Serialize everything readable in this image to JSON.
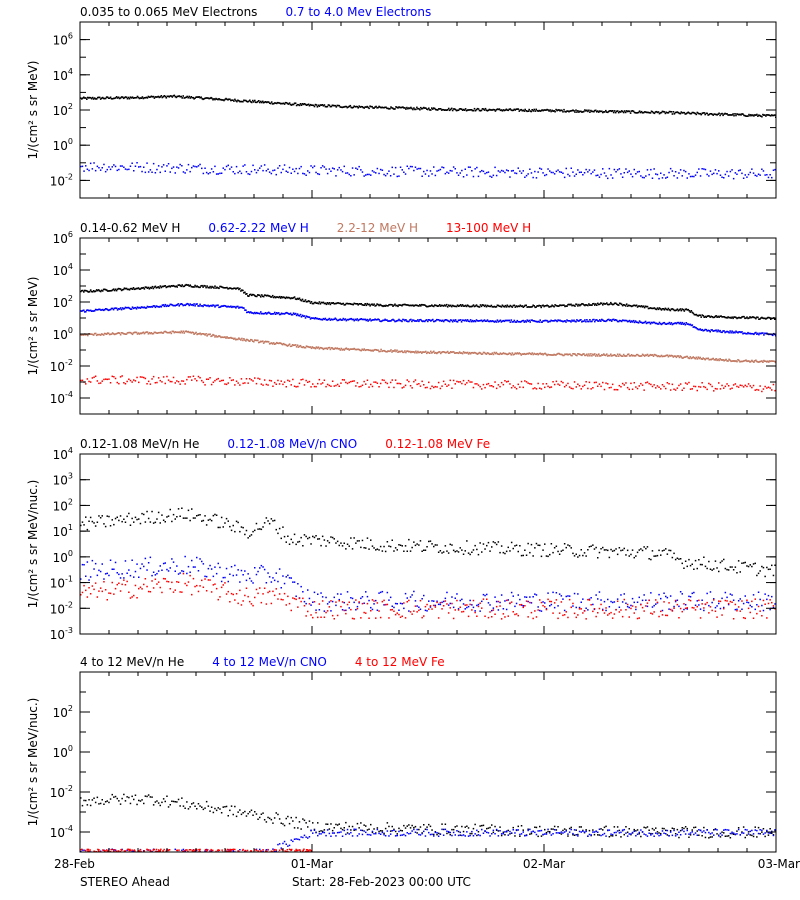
{
  "footer": {
    "spacecraft": "STEREO Ahead",
    "start": "Start: 28-Feb-2023 00:00 UTC"
  },
  "time_axis": {
    "ticks": [
      {
        "t": 0,
        "label": "28-Feb"
      },
      {
        "t": 1,
        "label": "01-Mar"
      },
      {
        "t": 2,
        "label": "02-Mar"
      },
      {
        "t": 3,
        "label": "03-Mar"
      }
    ],
    "range": [
      0,
      3
    ]
  },
  "chart_data": [
    {
      "type": "scatter",
      "ylabel": "1/(cm² s sr MeV)",
      "yscale": "log",
      "ylim": [
        -3,
        7
      ],
      "y_tick_labels": [
        {
          "exp": -2,
          "label": "10",
          "sup": "-2"
        },
        {
          "exp": 0,
          "label": "10",
          "sup": "0"
        },
        {
          "exp": 2,
          "label": "10",
          "sup": "2"
        },
        {
          "exp": 4,
          "label": "10",
          "sup": "4"
        },
        {
          "exp": 6,
          "label": "10",
          "sup": "6"
        }
      ],
      "legend": "top-left, above plot",
      "series": [
        {
          "name": "0.035 to 0.065 MeV Electrons",
          "color": "#000000",
          "style": "line",
          "x": [
            0,
            0.2,
            0.4,
            0.5,
            0.8,
            1.0,
            1.3,
            1.6,
            2.1,
            2.5,
            3.0
          ],
          "y": [
            500,
            550,
            650,
            550,
            300,
            200,
            150,
            120,
            100,
            80,
            50
          ],
          "scatter": 1.1
        },
        {
          "name": "0.7 to 4.0 Mev Electrons",
          "color": "#0000ff",
          "style": "points",
          "x": [
            0,
            1.0,
            2.0,
            3.0
          ],
          "y": [
            0.07,
            0.04,
            0.03,
            0.025
          ],
          "scatter": 1.7
        }
      ]
    },
    {
      "type": "scatter",
      "ylabel": "1/(cm² s sr MeV)",
      "yscale": "log",
      "ylim": [
        -5,
        6
      ],
      "y_tick_labels": [
        {
          "exp": -4,
          "label": "10",
          "sup": "-4"
        },
        {
          "exp": -2,
          "label": "10",
          "sup": "-2"
        },
        {
          "exp": 0,
          "label": "10",
          "sup": "0"
        },
        {
          "exp": 2,
          "label": "10",
          "sup": "2"
        },
        {
          "exp": 4,
          "label": "10",
          "sup": "4"
        },
        {
          "exp": 6,
          "label": "10",
          "sup": "6"
        }
      ],
      "legend": "top-left, above plot",
      "series": [
        {
          "name": "0.14-0.62 MeV H",
          "color": "#000000",
          "style": "line",
          "x": [
            0,
            0.25,
            0.45,
            0.68,
            0.72,
            0.92,
            1.0,
            1.3,
            2.0,
            2.3,
            2.5,
            2.62,
            2.66,
            3.0
          ],
          "y": [
            500,
            800,
            1200,
            800,
            300,
            200,
            100,
            70,
            60,
            90,
            40,
            35,
            15,
            10
          ],
          "scatter": 1.1
        },
        {
          "name": "0.62-2.22 MeV H",
          "color": "#0000ff",
          "style": "line",
          "x": [
            0,
            0.25,
            0.45,
            0.7,
            0.72,
            0.92,
            1.0,
            1.3,
            2.0,
            2.3,
            2.5,
            2.62,
            2.66,
            3.0
          ],
          "y": [
            30,
            50,
            80,
            50,
            25,
            20,
            10,
            8,
            7,
            8,
            5,
            5,
            2,
            1
          ],
          "scatter": 1.1
        },
        {
          "name": "2.2-12 MeV H",
          "color": "#c07860",
          "style": "line",
          "x": [
            0,
            0.2,
            0.45,
            0.7,
            1.0,
            1.5,
            2.0,
            2.5,
            2.8,
            3.0
          ],
          "y": [
            1,
            1.2,
            1.5,
            0.5,
            0.15,
            0.08,
            0.06,
            0.05,
            0.025,
            0.02
          ],
          "scatter": 1.1
        },
        {
          "name": "13-100 MeV H",
          "color": "#ff0000",
          "style": "points",
          "x": [
            0,
            0.5,
            1.0,
            2.0,
            3.0
          ],
          "y": [
            0.0015,
            0.0014,
            0.0009,
            0.0007,
            0.0005
          ],
          "scatter": 1.5
        }
      ]
    },
    {
      "type": "scatter",
      "ylabel": "1/(cm² s sr MeV/nuc.)",
      "yscale": "log",
      "ylim": [
        -3,
        4
      ],
      "y_tick_labels": [
        {
          "exp": -3,
          "label": "10",
          "sup": "-3"
        },
        {
          "exp": -2,
          "label": "10",
          "sup": "-2"
        },
        {
          "exp": -1,
          "label": "10",
          "sup": "-1"
        },
        {
          "exp": 0,
          "label": "10",
          "sup": "0"
        },
        {
          "exp": 1,
          "label": "10",
          "sup": "1"
        },
        {
          "exp": 2,
          "label": "10",
          "sup": "2"
        },
        {
          "exp": 3,
          "label": "10",
          "sup": "3"
        },
        {
          "exp": 4,
          "label": "10",
          "sup": "4"
        }
      ],
      "legend": "top-left, above plot",
      "series": [
        {
          "name": "0.12-1.08 MeV/n He",
          "color": "#000000",
          "style": "points",
          "x": [
            0,
            0.2,
            0.45,
            0.6,
            0.72,
            0.82,
            0.9,
            1.0,
            1.3,
            2.0,
            2.5,
            2.6,
            3.0
          ],
          "y": [
            20,
            30,
            50,
            25,
            10,
            25,
            5,
            5,
            3,
            2,
            1.5,
            0.7,
            0.3
          ],
          "scatter": 1.5
        },
        {
          "name": "0.12-1.08 MeV/n CNO",
          "color": "#0000ff",
          "style": "points",
          "x": [
            0,
            0.45,
            0.7,
            0.85,
            1.0,
            3.0
          ],
          "y": [
            0.3,
            0.5,
            0.2,
            0.2,
            0.02,
            0.02
          ],
          "scatter": 2.2
        },
        {
          "name": "0.12-1.08 MeV Fe",
          "color": "#ff0000",
          "style": "points",
          "x": [
            0,
            0.45,
            0.7,
            0.85,
            1.0,
            3.0
          ],
          "y": [
            0.04,
            0.1,
            0.03,
            0.03,
            0.01,
            0.01
          ],
          "scatter": 2.2
        }
      ]
    },
    {
      "type": "scatter",
      "ylabel": "1/(cm² s sr MeV/nuc.)",
      "yscale": "log",
      "ylim": [
        -5,
        4
      ],
      "y_tick_labels": [
        {
          "exp": -4,
          "label": "10",
          "sup": "-4"
        },
        {
          "exp": -2,
          "label": "10",
          "sup": "-2"
        },
        {
          "exp": 0,
          "label": "10",
          "sup": "0"
        },
        {
          "exp": 2,
          "label": "10",
          "sup": "2"
        }
      ],
      "legend": "top-left, above plot",
      "series": [
        {
          "name": "4 to 12 MeV/n He",
          "color": "#000000",
          "style": "points",
          "x": [
            0,
            0.3,
            0.6,
            0.85,
            1.0,
            1.5,
            2.0,
            2.5,
            3.0
          ],
          "y": [
            0.004,
            0.005,
            0.0015,
            0.0005,
            0.0002,
            0.00015,
            0.00012,
            0.00011,
            0.0001
          ],
          "scatter": 1.6
        },
        {
          "name": "4 to 12 MeV/n CNO",
          "color": "#0000ff",
          "style": "points",
          "x": [
            0,
            0.8,
            1.0,
            2.0,
            3.0
          ],
          "y": [
            1e-05,
            1e-05,
            0.0001,
            0.0001,
            0.0001
          ],
          "scatter": 1.0
        },
        {
          "name": "4 to 12 MeV Fe",
          "color": "#ff0000",
          "style": "points",
          "x": [
            0,
            1.0
          ],
          "y": [
            1e-05,
            1e-05
          ],
          "scatter": 1.0
        }
      ]
    }
  ]
}
